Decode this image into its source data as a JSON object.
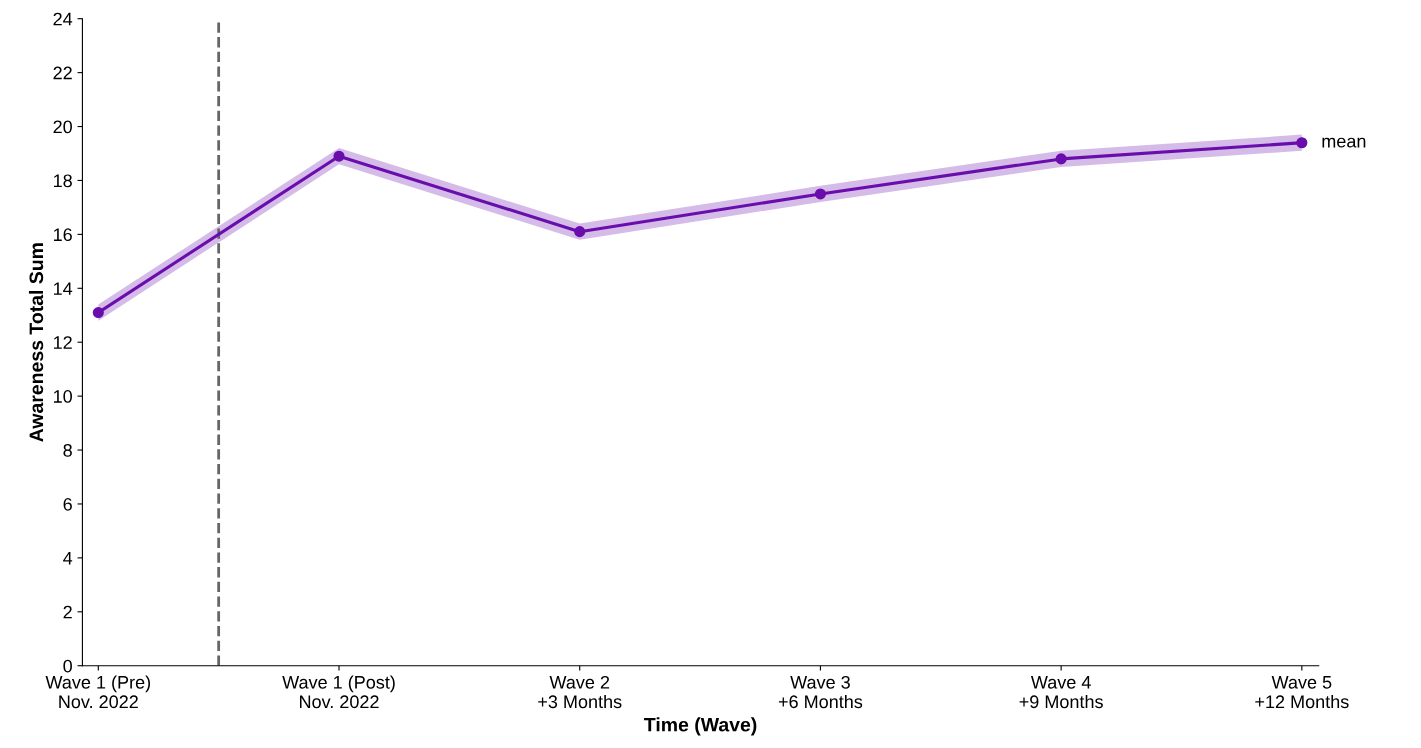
{
  "chart_data": {
    "type": "line",
    "xlabel": "Time (Wave)",
    "ylabel": "Awareness Total Sum",
    "categories": [
      "Wave 1 (Pre)\nNov. 2022",
      "Wave 1 (Post)\nNov. 2022",
      "Wave 2\n+3 Months",
      "Wave 3\n+6 Months",
      "Wave 4\n+9 Months",
      "Wave 5\n+12 Months"
    ],
    "series": [
      {
        "name": "mean",
        "color": "#6a0dad",
        "values": [
          13.1,
          18.9,
          16.1,
          17.5,
          18.8,
          19.4
        ],
        "lower": [
          12.8,
          18.6,
          15.8,
          17.2,
          18.5,
          19.1
        ],
        "upper": [
          13.4,
          19.2,
          16.4,
          17.8,
          19.1,
          19.7
        ]
      }
    ],
    "ylim": [
      0,
      24
    ],
    "yticks": [
      0,
      2,
      4,
      6,
      8,
      10,
      12,
      14,
      16,
      18,
      20,
      22,
      24
    ],
    "marker": "circle",
    "line_style": "solid",
    "grid": false,
    "legend": false
  }
}
